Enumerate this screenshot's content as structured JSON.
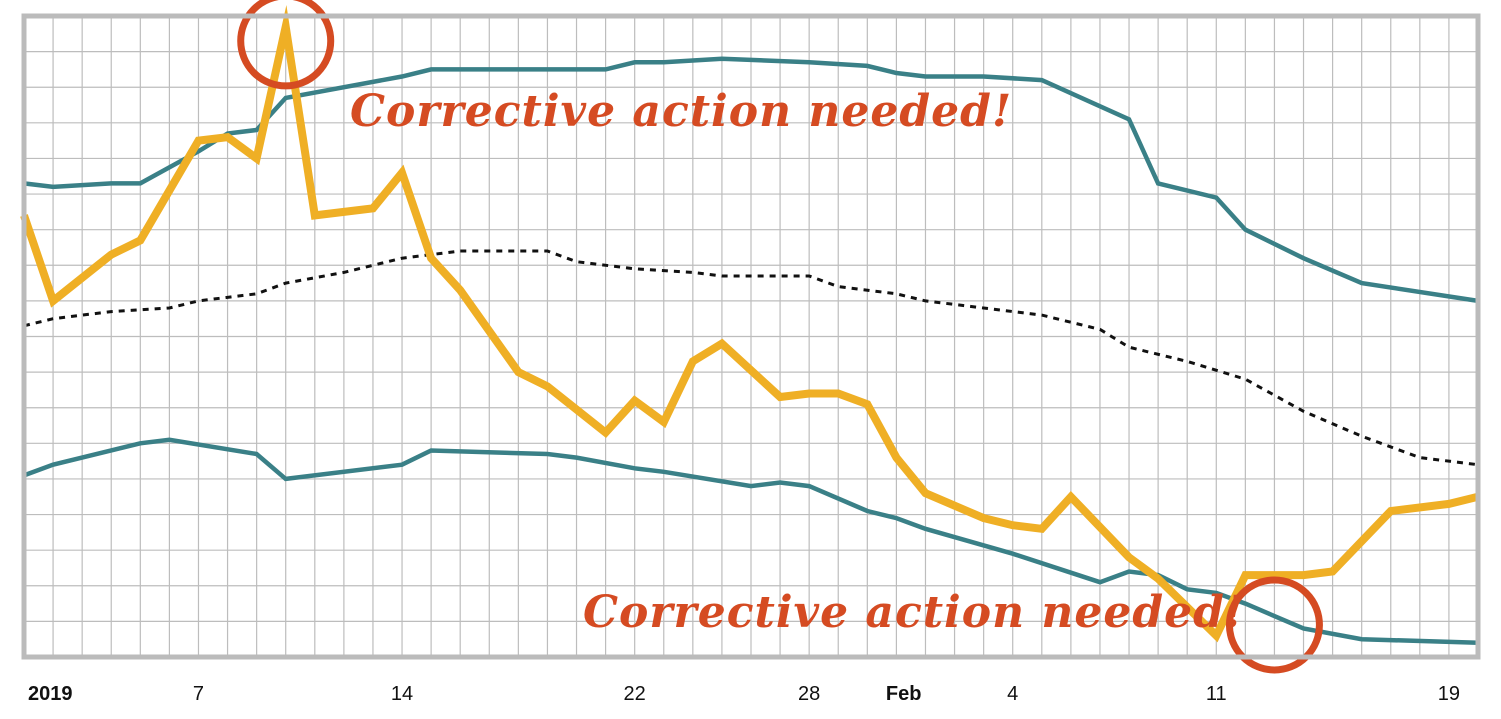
{
  "chart_data": {
    "type": "line",
    "title": "",
    "xlabel": "",
    "ylabel": "",
    "x_start": "2019-01-01",
    "x_end": "2019-02-20",
    "x_ticks": [
      {
        "date": "2019-01-01",
        "label": "2019",
        "bold": true
      },
      {
        "date": "2019-01-07",
        "label": "7",
        "bold": false
      },
      {
        "date": "2019-01-14",
        "label": "14",
        "bold": false
      },
      {
        "date": "2019-01-22",
        "label": "22",
        "bold": false
      },
      {
        "date": "2019-01-28",
        "label": "28",
        "bold": false
      },
      {
        "date": "2019-02-01",
        "label": "Feb",
        "bold": true
      },
      {
        "date": "2019-02-04",
        "label": "4",
        "bold": false
      },
      {
        "date": "2019-02-11",
        "label": "11",
        "bold": false
      },
      {
        "date": "2019-02-19",
        "label": "19",
        "bold": false
      }
    ],
    "ylim": [
      0,
      18
    ],
    "y_ticks": [
      0,
      1,
      2,
      3,
      4,
      5,
      6,
      7,
      8,
      9,
      10,
      11,
      12,
      13,
      14,
      15,
      16,
      17,
      18
    ],
    "grid": true,
    "colors": {
      "measure": "#EFAF25",
      "limits": "#3A8087",
      "mean": "#111111",
      "annotation": "#D54B22",
      "frame": "#BBBBBB",
      "grid": "#BDBDBD"
    },
    "series": [
      {
        "role": "upper_limit",
        "x": [
          "2019-01-01",
          "2019-01-02",
          "2019-01-04",
          "2019-01-05",
          "2019-01-07",
          "2019-01-08",
          "2019-01-09",
          "2019-01-10",
          "2019-01-14",
          "2019-01-15",
          "2019-01-16",
          "2019-01-20",
          "2019-01-21",
          "2019-01-22",
          "2019-01-23",
          "2019-01-25",
          "2019-01-28",
          "2019-01-30",
          "2019-01-31",
          "2019-02-01",
          "2019-02-03",
          "2019-02-05",
          "2019-02-08",
          "2019-02-09",
          "2019-02-11",
          "2019-02-12",
          "2019-02-14",
          "2019-02-16",
          "2019-02-20"
        ],
        "y": [
          13.3,
          13.2,
          13.3,
          13.3,
          14.2,
          14.7,
          14.8,
          15.7,
          16.3,
          16.5,
          16.5,
          16.5,
          16.5,
          16.7,
          16.7,
          16.8,
          16.7,
          16.6,
          16.4,
          16.3,
          16.3,
          16.2,
          15.1,
          13.3,
          12.9,
          12.0,
          11.2,
          10.5,
          10.0
        ]
      },
      {
        "role": "measure",
        "x": [
          "2019-01-01",
          "2019-01-02",
          "2019-01-04",
          "2019-01-05",
          "2019-01-07",
          "2019-01-08",
          "2019-01-09",
          "2019-01-10",
          "2019-01-11",
          "2019-01-12",
          "2019-01-13",
          "2019-01-14",
          "2019-01-15",
          "2019-01-16",
          "2019-01-18",
          "2019-01-19",
          "2019-01-21",
          "2019-01-22",
          "2019-01-23",
          "2019-01-24",
          "2019-01-25",
          "2019-01-27",
          "2019-01-28",
          "2019-01-29",
          "2019-01-30",
          "2019-01-31",
          "2019-02-01",
          "2019-02-03",
          "2019-02-04",
          "2019-02-05",
          "2019-02-06",
          "2019-02-08",
          "2019-02-09",
          "2019-02-11",
          "2019-02-12",
          "2019-02-14",
          "2019-02-15",
          "2019-02-17",
          "2019-02-19",
          "2019-02-20"
        ],
        "y": [
          12.4,
          10.0,
          11.3,
          11.7,
          14.5,
          14.6,
          14.0,
          17.7,
          12.4,
          12.5,
          12.6,
          13.6,
          11.2,
          10.3,
          8.0,
          7.6,
          6.3,
          7.2,
          6.6,
          8.3,
          8.8,
          7.3,
          7.4,
          7.4,
          7.1,
          5.6,
          4.6,
          3.9,
          3.7,
          3.6,
          4.5,
          2.8,
          2.2,
          0.6,
          2.3,
          2.3,
          2.4,
          4.1,
          4.3,
          4.5
        ]
      },
      {
        "role": "lower_limit",
        "x": [
          "2019-01-01",
          "2019-01-02",
          "2019-01-05",
          "2019-01-06",
          "2019-01-09",
          "2019-01-10",
          "2019-01-14",
          "2019-01-15",
          "2019-01-19",
          "2019-01-20",
          "2019-01-22",
          "2019-01-23",
          "2019-01-26",
          "2019-01-27",
          "2019-01-28",
          "2019-01-30",
          "2019-01-31",
          "2019-02-01",
          "2019-02-04",
          "2019-02-07",
          "2019-02-08",
          "2019-02-09",
          "2019-02-10",
          "2019-02-11",
          "2019-02-12",
          "2019-02-14",
          "2019-02-16",
          "2019-02-20"
        ],
        "y": [
          5.1,
          5.4,
          6.0,
          6.1,
          5.7,
          5.0,
          5.4,
          5.8,
          5.7,
          5.6,
          5.3,
          5.2,
          4.8,
          4.9,
          4.8,
          4.1,
          3.9,
          3.6,
          2.9,
          2.1,
          2.4,
          2.3,
          1.9,
          1.8,
          1.5,
          0.8,
          0.5,
          0.4
        ]
      },
      {
        "role": "mean",
        "x": [
          "2019-01-01",
          "2019-01-02",
          "2019-01-03",
          "2019-01-04",
          "2019-01-06",
          "2019-01-07",
          "2019-01-09",
          "2019-01-10",
          "2019-01-12",
          "2019-01-14",
          "2019-01-15",
          "2019-01-16",
          "2019-01-19",
          "2019-01-20",
          "2019-01-22",
          "2019-01-24",
          "2019-01-25",
          "2019-01-28",
          "2019-01-29",
          "2019-01-31",
          "2019-02-01",
          "2019-02-03",
          "2019-02-05",
          "2019-02-07",
          "2019-02-08",
          "2019-02-10",
          "2019-02-12",
          "2019-02-14",
          "2019-02-16",
          "2019-02-18",
          "2019-02-20"
        ],
        "y": [
          9.3,
          9.5,
          9.6,
          9.7,
          9.8,
          10.0,
          10.2,
          10.5,
          10.8,
          11.2,
          11.3,
          11.4,
          11.4,
          11.1,
          10.9,
          10.8,
          10.7,
          10.7,
          10.4,
          10.2,
          10.0,
          9.8,
          9.6,
          9.2,
          8.7,
          8.3,
          7.8,
          6.9,
          6.2,
          5.6,
          5.4
        ]
      }
    ],
    "annotations": [
      {
        "text": "Corrective action needed!",
        "x": "2019-01-10",
        "y": 17.3
      },
      {
        "text": "Corrective action needed!",
        "x": "2019-02-13",
        "y": 0.9
      }
    ]
  }
}
